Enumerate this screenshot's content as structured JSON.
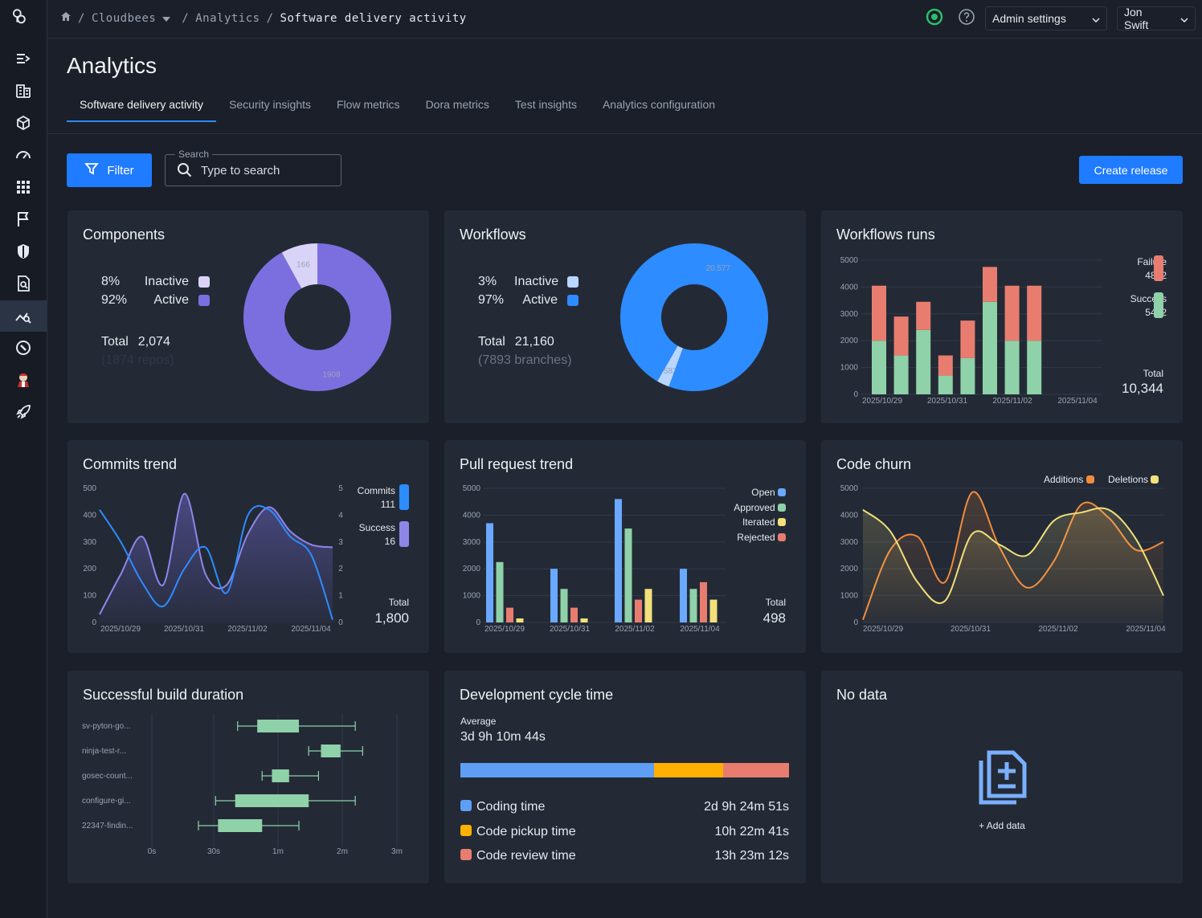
{
  "breadcrumb": {
    "org": "Cloudbees",
    "section": "Analytics",
    "current": "Software delivery activity"
  },
  "topbar": {
    "admin_label": "Admin settings",
    "user_label": "Jon Swift"
  },
  "page": {
    "title": "Analytics"
  },
  "tabs": [
    {
      "label": "Software delivery activity",
      "active": true
    },
    {
      "label": "Security insights"
    },
    {
      "label": "Flow metrics"
    },
    {
      "label": "Dora metrics"
    },
    {
      "label": "Test insights"
    },
    {
      "label": "Analytics configuration"
    }
  ],
  "toolbar": {
    "filter_label": "Filter",
    "search_label": "Search",
    "search_placeholder": "Type to search",
    "create_label": "Create release"
  },
  "colors": {
    "accent": "#1f7bff",
    "purple": "#7b6fe0",
    "purple_light": "#d9d4f7",
    "blue": "#2d8cff",
    "blue_light": "#b8d6ff",
    "green": "#8fd1a8",
    "red": "#e87d6f",
    "yellow": "#f2e07a",
    "orange": "#f28b3c",
    "amber": "#ffb000"
  },
  "components": {
    "title": "Components",
    "legend": [
      {
        "pct": "8%",
        "label": "Inactive"
      },
      {
        "pct": "92%",
        "label": "Active"
      }
    ],
    "total_label": "Total",
    "total": "2,074",
    "sub": "(1874 repos)",
    "chart_data": {
      "type": "pie",
      "categories": [
        "Inactive",
        "Active"
      ],
      "values": [
        166,
        1908
      ],
      "labels": [
        "166",
        "1908"
      ]
    }
  },
  "workflows": {
    "title": "Workflows",
    "legend": [
      {
        "pct": "3%",
        "label": "Inactive"
      },
      {
        "pct": "97%",
        "label": "Active"
      }
    ],
    "total_label": "Total",
    "total": "21,160",
    "sub": "(7893 branches)",
    "chart_data": {
      "type": "pie",
      "categories": [
        "Inactive",
        "Active"
      ],
      "values": [
        583,
        20577
      ],
      "labels": [
        "583",
        "20.577"
      ]
    }
  },
  "workflow_runs": {
    "title": "Workflows runs",
    "legend": [
      {
        "label": "Failure",
        "value": "4892"
      },
      {
        "label": "Success",
        "value": "5452"
      }
    ],
    "total_label": "Total",
    "total": "10,344",
    "chart_data": {
      "type": "bar",
      "x_ticks": [
        "2025/10/29",
        "2025/10/31",
        "2025/11/02",
        "2025/11/04"
      ],
      "y_ticks": [
        "0",
        "1000",
        "2000",
        "3000",
        "4000",
        "5000"
      ],
      "ylim": [
        0,
        5000
      ],
      "series": [
        {
          "name": "Success",
          "values": [
            2000,
            1450,
            2400,
            700,
            1350,
            3450,
            2000,
            2000
          ]
        },
        {
          "name": "Failure",
          "values": [
            2050,
            1450,
            1050,
            750,
            1400,
            1300,
            2050,
            2050
          ]
        }
      ]
    }
  },
  "commits": {
    "title": "Commits trend",
    "legend": [
      {
        "label": "Commits",
        "value": "111"
      },
      {
        "label": "Success",
        "value": "16"
      }
    ],
    "total_label": "Total",
    "total": "1,800",
    "chart_data": {
      "type": "line",
      "x_ticks": [
        "2025/10/29",
        "2025/10/31",
        "2025/11/02",
        "2025/11/04"
      ],
      "y_ticks": [
        "0",
        "100",
        "200",
        "300",
        "400",
        "500"
      ],
      "y2_ticks": [
        "0",
        "1",
        "2",
        "3",
        "4",
        "5"
      ],
      "ylim": [
        0,
        500
      ],
      "series": [
        {
          "name": "Commits",
          "values": [
            420,
            300,
            150,
            60,
            200,
            280,
            110,
            400,
            420,
            320,
            250,
            10
          ]
        },
        {
          "name": "Success",
          "values": [
            30,
            180,
            320,
            140,
            480,
            180,
            140,
            330,
            430,
            340,
            290,
            280
          ]
        }
      ]
    }
  },
  "pull_requests": {
    "title": "Pull request trend",
    "legend": [
      {
        "label": "Open"
      },
      {
        "label": "Approved"
      },
      {
        "label": "Iterated"
      },
      {
        "label": "Rejected"
      }
    ],
    "total_label": "Total",
    "total": "498",
    "chart_data": {
      "type": "bar",
      "x_ticks": [
        "2025/10/29",
        "2025/10/31",
        "2025/11/02",
        "2025/11/04"
      ],
      "y_ticks": [
        "0",
        "1000",
        "2000",
        "3000",
        "4000",
        "5000"
      ],
      "ylim": [
        0,
        5000
      ],
      "categories": [
        "2025/10/29",
        "2025/10/31",
        "2025/11/02",
        "2025/11/04"
      ],
      "series": [
        {
          "name": "Open",
          "values": [
            3700,
            2000,
            4600,
            2000
          ]
        },
        {
          "name": "Approved",
          "values": [
            2250,
            1250,
            3500,
            1250
          ]
        },
        {
          "name": "Rejected",
          "values": [
            550,
            550,
            850,
            1500
          ]
        },
        {
          "name": "Iterated",
          "values": [
            150,
            150,
            1250,
            850
          ]
        }
      ]
    }
  },
  "code_churn": {
    "title": "Code churn",
    "legend": [
      {
        "label": "Additions"
      },
      {
        "label": "Deletions"
      }
    ],
    "chart_data": {
      "type": "area",
      "x_ticks": [
        "2025/10/29",
        "2025/10/31",
        "2025/11/02",
        "2025/11/04"
      ],
      "y_ticks": [
        "0",
        "1000",
        "2000",
        "3000",
        "4000",
        "5000"
      ],
      "ylim": [
        0,
        5000
      ],
      "series": [
        {
          "name": "Additions",
          "values": [
            100,
            2700,
            3200,
            1500,
            4850,
            2800,
            1300,
            2300,
            4400,
            3900,
            2700,
            3000
          ]
        },
        {
          "name": "Deletions",
          "values": [
            4200,
            3400,
            1500,
            800,
            3300,
            2900,
            2500,
            3800,
            4100,
            4200,
            3100,
            1000
          ]
        }
      ]
    }
  },
  "build_duration": {
    "title": "Successful build duration",
    "chart_data": {
      "type": "boxplot",
      "categories": [
        "sv-pyton-go...",
        "ninja-test-r...",
        "gosec-count...",
        "configure-gi...",
        "22347-findin..."
      ],
      "x_ticks": [
        "0s",
        "30s",
        "1m",
        "2m",
        "3m"
      ],
      "boxes": [
        {
          "min": 0.35,
          "q1": 0.43,
          "q3": 0.6,
          "max": 0.83
        },
        {
          "min": 0.64,
          "q1": 0.69,
          "q3": 0.77,
          "max": 0.86
        },
        {
          "min": 0.45,
          "q1": 0.49,
          "q3": 0.56,
          "max": 0.68
        },
        {
          "min": 0.26,
          "q1": 0.34,
          "q3": 0.64,
          "max": 0.83
        },
        {
          "min": 0.19,
          "q1": 0.27,
          "q3": 0.45,
          "max": 0.6
        }
      ]
    }
  },
  "cycle_time": {
    "title": "Development cycle time",
    "average_label": "Average",
    "average": "3d 9h 10m 44s",
    "rows": [
      {
        "label": "Coding time",
        "value": "2d 9h 24m 51s",
        "fraction": 0.59
      },
      {
        "label": "Code pickup time",
        "value": "10h 22m 41s",
        "fraction": 0.21
      },
      {
        "label": "Code review time",
        "value": "13h 23m 12s",
        "fraction": 0.2
      }
    ]
  },
  "no_data": {
    "title": "No data",
    "add_label": "+ Add data"
  }
}
